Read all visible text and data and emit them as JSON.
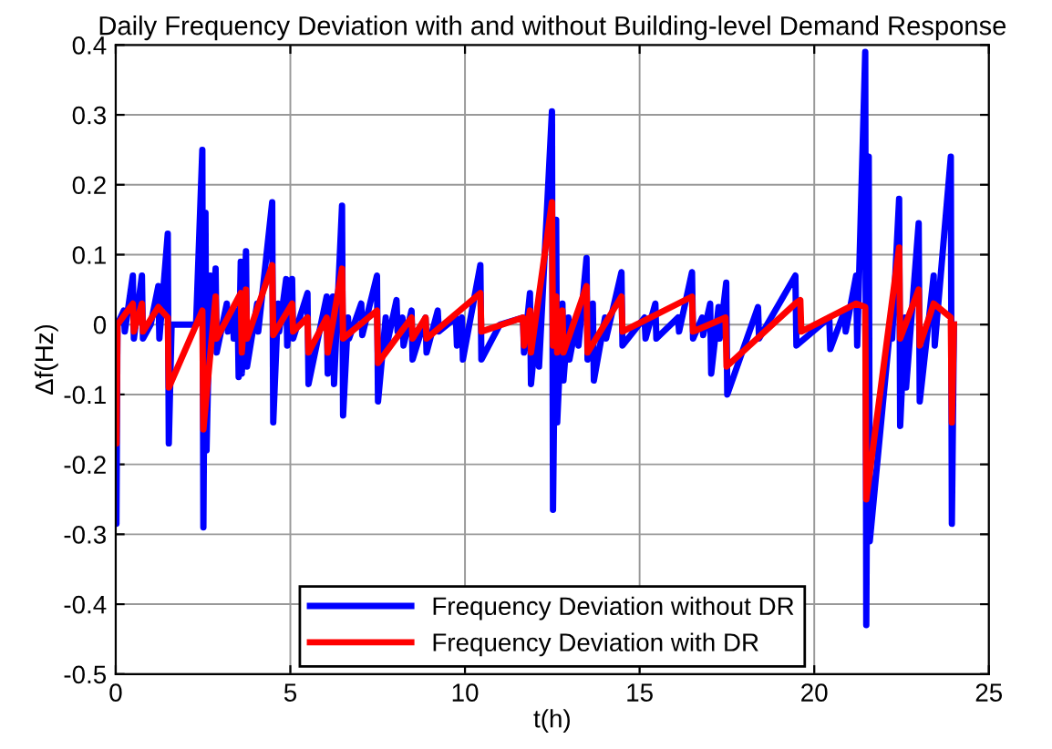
{
  "chart_data": {
    "type": "line",
    "title": "Daily Frequency Deviation with and without Building-level Demand Response",
    "xlabel": "t(h)",
    "ylabel": "Δf(Hz)",
    "xlim": [
      0,
      25
    ],
    "xticks": [
      0,
      5,
      10,
      15,
      20,
      25
    ],
    "ylim": [
      -0.5,
      0.4
    ],
    "yticks": [
      -0.5,
      -0.4,
      -0.3,
      -0.2,
      -0.1,
      0,
      0.1,
      0.2,
      0.3,
      0.4
    ],
    "grid": true,
    "legend": "bottom",
    "line_style": "solid",
    "series": [
      {
        "name": "Frequency Deviation without DR",
        "color": "#0000ff",
        "x": [
          0,
          0.02,
          0.05,
          0.23,
          0.26,
          0.49,
          0.52,
          0.75,
          0.78,
          1.0,
          1.22,
          1.25,
          1.49,
          1.52,
          1.6,
          2.3,
          2.48,
          2.51,
          2.57,
          2.6,
          2.71,
          2.74,
          2.86,
          2.89,
          3.18,
          3.21,
          3.35,
          3.38,
          3.49,
          3.52,
          3.58,
          3.61,
          3.73,
          3.76,
          4.05,
          4.08,
          4.48,
          4.51,
          4.65,
          4.68,
          4.88,
          4.91,
          5.05,
          5.08,
          5.49,
          5.52,
          6.04,
          6.07,
          6.22,
          6.25,
          6.48,
          6.51,
          6.65,
          6.68,
          7.03,
          7.06,
          7.48,
          7.51,
          7.73,
          7.76,
          8.04,
          8.07,
          8.21,
          8.24,
          8.47,
          8.5,
          8.87,
          8.9,
          9.22,
          9.25,
          9.74,
          9.77,
          9.91,
          9.94,
          10.44,
          10.47,
          11.0,
          11.66,
          11.69,
          11.86,
          11.89,
          12.09,
          12.12,
          12.49,
          12.52,
          12.61,
          12.64,
          12.79,
          12.82,
          12.96,
          12.99,
          13.22,
          13.25,
          13.48,
          13.51,
          13.66,
          13.69,
          14.01,
          14.04,
          14.48,
          14.51,
          15.14,
          15.17,
          15.45,
          15.48,
          16.1,
          16.13,
          16.5,
          16.53,
          16.79,
          16.82,
          17.02,
          17.05,
          17.26,
          17.29,
          17.48,
          17.51,
          18.39,
          18.42,
          19.46,
          19.49,
          20.43,
          20.46,
          20.87,
          20.9,
          21.2,
          21.23,
          21.46,
          21.49,
          21.56,
          21.59,
          22.2,
          22.23,
          22.43,
          22.46,
          22.6,
          22.63,
          22.99,
          23.02,
          23.42,
          23.45,
          23.91,
          23.94,
          24.0
        ],
        "values": [
          0,
          -0.285,
          0,
          0.02,
          -0.01,
          0.07,
          -0.02,
          0.07,
          -0.02,
          0,
          0.055,
          -0.02,
          0.13,
          -0.17,
          0,
          0,
          0.25,
          -0.29,
          0.16,
          -0.18,
          0.07,
          -0.03,
          0.08,
          -0.04,
          0.03,
          -0.01,
          0.02,
          -0.02,
          0.02,
          -0.075,
          0.09,
          -0.07,
          0.105,
          -0.06,
          0.03,
          -0.01,
          0.175,
          -0.14,
          0.03,
          -0.01,
          0.065,
          -0.03,
          0.065,
          -0.02,
          0.045,
          -0.085,
          0.04,
          -0.07,
          0.04,
          -0.085,
          0.17,
          -0.13,
          0.01,
          -0.02,
          0.03,
          -0.015,
          0.07,
          -0.11,
          0.01,
          -0.03,
          0.035,
          -0.01,
          0.01,
          -0.03,
          0.02,
          -0.05,
          0.01,
          -0.04,
          0.02,
          -0.01,
          0.01,
          -0.03,
          0.01,
          -0.05,
          0.085,
          -0.05,
          0,
          0.01,
          -0.04,
          0.045,
          -0.085,
          0.02,
          -0.06,
          0.305,
          -0.265,
          0.15,
          -0.14,
          0.03,
          -0.08,
          0.01,
          -0.05,
          0.01,
          -0.03,
          0.095,
          -0.05,
          0.03,
          -0.08,
          0.01,
          -0.02,
          0.075,
          -0.03,
          0.01,
          -0.02,
          0.03,
          -0.02,
          0.01,
          -0.01,
          0.075,
          -0.02,
          0.01,
          -0.015,
          0.03,
          -0.07,
          0.025,
          -0.02,
          0.06,
          -0.1,
          0.025,
          -0.02,
          0.07,
          -0.03,
          0.01,
          -0.035,
          0.02,
          -0.01,
          0.07,
          -0.03,
          0.39,
          -0.43,
          0.24,
          -0.31,
          0.01,
          -0.02,
          0.18,
          -0.145,
          0.01,
          -0.09,
          0.145,
          -0.11,
          0.07,
          -0.03,
          0.24,
          -0.285,
          0
        ]
      },
      {
        "name": "Frequency Deviation with DR",
        "color": "#ff0000",
        "x": [
          0,
          0.02,
          0.05,
          0.49,
          0.52,
          0.75,
          0.78,
          1.22,
          1.49,
          1.52,
          2.48,
          2.51,
          2.86,
          2.89,
          3.58,
          3.61,
          3.73,
          3.76,
          4.48,
          4.51,
          5.05,
          5.08,
          5.49,
          5.52,
          6.04,
          6.07,
          6.48,
          6.51,
          7.48,
          7.51,
          8.47,
          8.5,
          8.87,
          8.9,
          10.44,
          10.47,
          11.66,
          11.69,
          11.86,
          11.89,
          12.49,
          12.52,
          12.61,
          12.64,
          12.79,
          12.82,
          13.48,
          13.51,
          14.48,
          14.51,
          16.5,
          16.53,
          17.46,
          17.49,
          19.46,
          19.6,
          19.63,
          21.2,
          21.46,
          21.49,
          22.43,
          22.46,
          22.99,
          23.02,
          23.42,
          23.91,
          23.94,
          24.0
        ],
        "values": [
          0,
          -0.17,
          0,
          0.03,
          -0.01,
          0.03,
          -0.01,
          0.025,
          0.01,
          -0.09,
          0.02,
          -0.15,
          0.04,
          -0.02,
          0.045,
          -0.04,
          0.05,
          -0.02,
          0.085,
          -0.015,
          0.03,
          -0.01,
          0.01,
          -0.04,
          0.01,
          -0.04,
          0.08,
          -0.02,
          0.02,
          -0.055,
          0.01,
          -0.02,
          0.01,
          -0.02,
          0.045,
          -0.01,
          0.01,
          -0.03,
          0.02,
          -0.04,
          0.175,
          -0.03,
          0.04,
          -0.04,
          0.02,
          -0.04,
          0.055,
          -0.04,
          0.04,
          -0.01,
          0.04,
          -0.01,
          0.01,
          -0.06,
          0.03,
          0.035,
          -0.01,
          0.03,
          0.025,
          -0.25,
          0.11,
          -0.02,
          0.05,
          -0.03,
          0.03,
          0.01,
          -0.14,
          0
        ]
      }
    ]
  }
}
